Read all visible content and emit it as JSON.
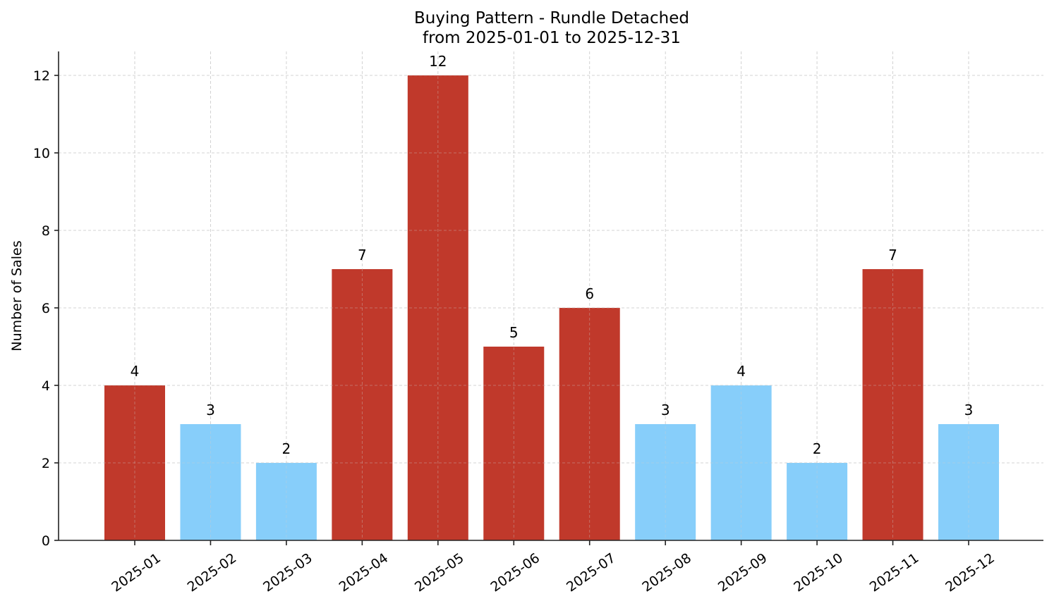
{
  "chart_data": {
    "type": "bar",
    "title": "Buying Pattern - Rundle Detached",
    "subtitle": "from 2025-01-01 to 2025-12-31",
    "xlabel": "",
    "ylabel": "Number of Sales",
    "categories": [
      "2025-01",
      "2025-02",
      "2025-03",
      "2025-04",
      "2025-05",
      "2025-06",
      "2025-07",
      "2025-08",
      "2025-09",
      "2025-10",
      "2025-11",
      "2025-12"
    ],
    "values": [
      4,
      3,
      2,
      7,
      12,
      5,
      6,
      3,
      4,
      2,
      7,
      3
    ],
    "bar_colors": [
      "#c0392b",
      "#87cefa",
      "#87cefa",
      "#c0392b",
      "#c0392b",
      "#c0392b",
      "#c0392b",
      "#87cefa",
      "#87cefa",
      "#87cefa",
      "#c0392b",
      "#87cefa"
    ],
    "ylim": [
      0,
      12.6
    ],
    "yticks": [
      0,
      2,
      4,
      6,
      8,
      10,
      12
    ],
    "grid": true,
    "legend": null,
    "data_labels": true
  },
  "colors": {
    "high": "#c0392b",
    "low": "#87cefa",
    "grid": "#cccccc",
    "axis": "#222222"
  }
}
